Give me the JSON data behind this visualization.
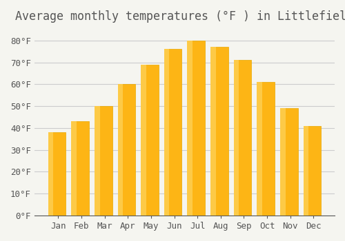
{
  "title": "Average monthly temperatures (°F ) in Littlefield",
  "months": [
    "Jan",
    "Feb",
    "Mar",
    "Apr",
    "May",
    "Jun",
    "Jul",
    "Aug",
    "Sep",
    "Oct",
    "Nov",
    "Dec"
  ],
  "values": [
    38,
    43,
    50,
    60,
    69,
    76,
    80,
    77,
    71,
    61,
    49,
    41
  ],
  "bar_color": "#FDB515",
  "bar_edge_color": "#E8A800",
  "bar_gradient_top": "#FDCA47",
  "background_color": "#F5F5F0",
  "grid_color": "#CCCCCC",
  "text_color": "#555555",
  "ylim": [
    0,
    85
  ],
  "yticks": [
    0,
    10,
    20,
    30,
    40,
    50,
    60,
    70,
    80
  ],
  "ytick_labels": [
    "0°F",
    "10°F",
    "20°F",
    "30°F",
    "40°F",
    "50°F",
    "60°F",
    "70°F",
    "80°F"
  ],
  "title_fontsize": 12,
  "tick_fontsize": 9
}
